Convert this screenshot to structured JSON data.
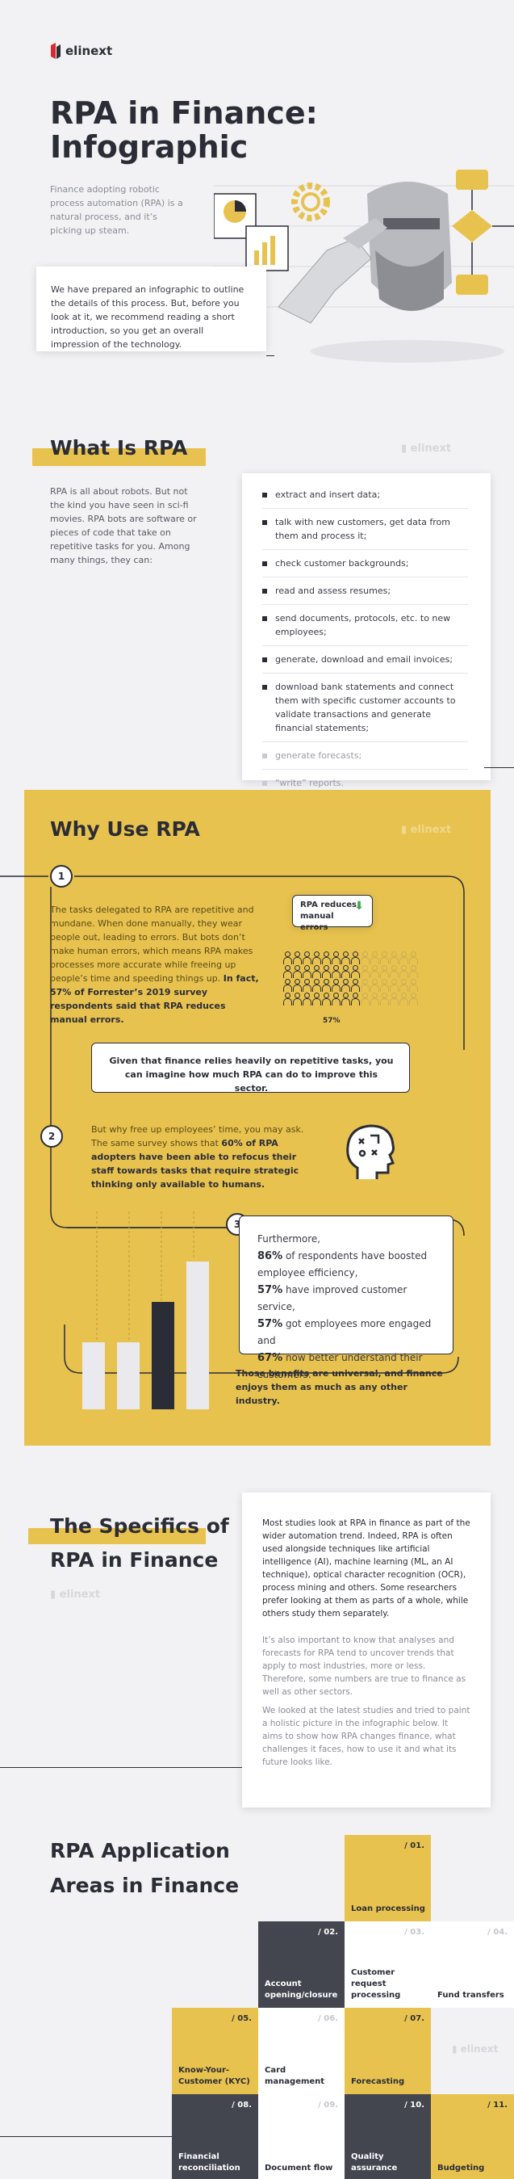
{
  "brand": {
    "name": "elinext",
    "accent": "#e8c24f",
    "dark": "#2b2d36"
  },
  "hero": {
    "title_line1": "RPA in Finance:",
    "title_line2": "Infographic",
    "lead": "Finance adopting robotic process automation (RPA) is a natural process, and it’s picking up steam.",
    "intro": "We have prepared an infographic to outline the details of this process. But, before you look at it, we recommend reading a short introduction, so you get an overall impression of the technology."
  },
  "what_is": {
    "title": "What Is RPA",
    "body": "RPA is all about robots. But not the kind you have seen in sci-fi movies. RPA bots are software or pieces of code that take on repetitive tasks for you. Among many things, they can:",
    "items": [
      "extract and insert data;",
      "talk with new customers, get data from them and process it;",
      "check customer backgrounds;",
      "read and assess resumes;",
      "send documents, protocols, etc. to new employees;",
      "generate, download and email invoices;",
      "download bank statements and connect them with specific customer accounts to validate transactions and generate financial statements;",
      "generate forecasts;",
      "“write” reports."
    ]
  },
  "why_use": {
    "title": "Why Use RPA",
    "step1_num": "1",
    "step1_text_plain": "The tasks delegated to RPA are repetitive and mundane. When done manually, they wear people out, leading to errors. But bots don’t make human errors, which means RPA makes processes more accurate while freeing up people’s time and speeding things up.",
    "step1_text_bold": "In fact, 57% of Forrester’s 2019 survey respondents said that RPA reduces manual errors.",
    "bubble_label": "RPA reduces manual errors",
    "people_pct_label": "57%",
    "people_filled_fraction": 0.57,
    "callout": "Given that finance relies heavily on repetitive tasks, you can imagine how much RPA can do to improve this sector.",
    "step2_num": "2",
    "step2_plain": "But why free up employees’ time, you may ask. The same survey shows that",
    "step2_bold": "60% of RPA adopters have been able to refocus their staff towards tasks that require strategic thinking only available to humans.",
    "step3_num": "3",
    "step3_intro": "Furthermore,",
    "stats": [
      {
        "value": "86%",
        "text": "of respondents have boosted employee efficiency,"
      },
      {
        "value": "57%",
        "text": "have improved customer service,"
      },
      {
        "value": "57%",
        "text": "got employees more engaged and"
      },
      {
        "value": "67%",
        "text": "now better understand their customers."
      }
    ],
    "closing": "Those benefits are universal, and finance enjoys them as much as any other industry."
  },
  "specifics": {
    "title_line1": "The Specifics of",
    "title_line2": "RPA in Finance",
    "p1": "Most studies look at RPA in finance as part of the wider automation trend. Indeed, RPA is often used alongside techniques like artificial intelligence (AI), machine learning (ML, an AI technique), optical character recognition (OCR), process mining and others. Some researchers prefer looking at them as parts of a whole, while others study them separately.",
    "p2": "It’s also important to know that analyses and forecasts for RPA tend to uncover trends that apply to most industries, more or less. Therefore, some numbers are true to finance as well as other sectors.",
    "p3": "We looked at the latest studies and tried to paint a holistic picture in the infographic below. It aims to show how RPA changes finance, what challenges it faces, how to use it and what its future looks like."
  },
  "areas": {
    "title_line1": "RPA Application",
    "title_line2": "Areas in Finance",
    "tiles": [
      {
        "num": "/ 01.",
        "label": "Loan processing"
      },
      {
        "num": "/ 02.",
        "label": "Account opening/closure"
      },
      {
        "num": "/ 03.",
        "label": "Customer request processing"
      },
      {
        "num": "/ 04.",
        "label": "Fund transfers"
      },
      {
        "num": "/ 05.",
        "label": "Know-Your-Customer (KYC)"
      },
      {
        "num": "/ 06.",
        "label": "Card management"
      },
      {
        "num": "/ 07.",
        "label": "Forecasting"
      },
      {
        "num": "/ 08.",
        "label": "Financial reconciliation"
      },
      {
        "num": "/ 09.",
        "label": "Document flow"
      },
      {
        "num": "/ 10.",
        "label": "Quality assurance"
      },
      {
        "num": "/ 11.",
        "label": "Budgeting"
      }
    ]
  }
}
